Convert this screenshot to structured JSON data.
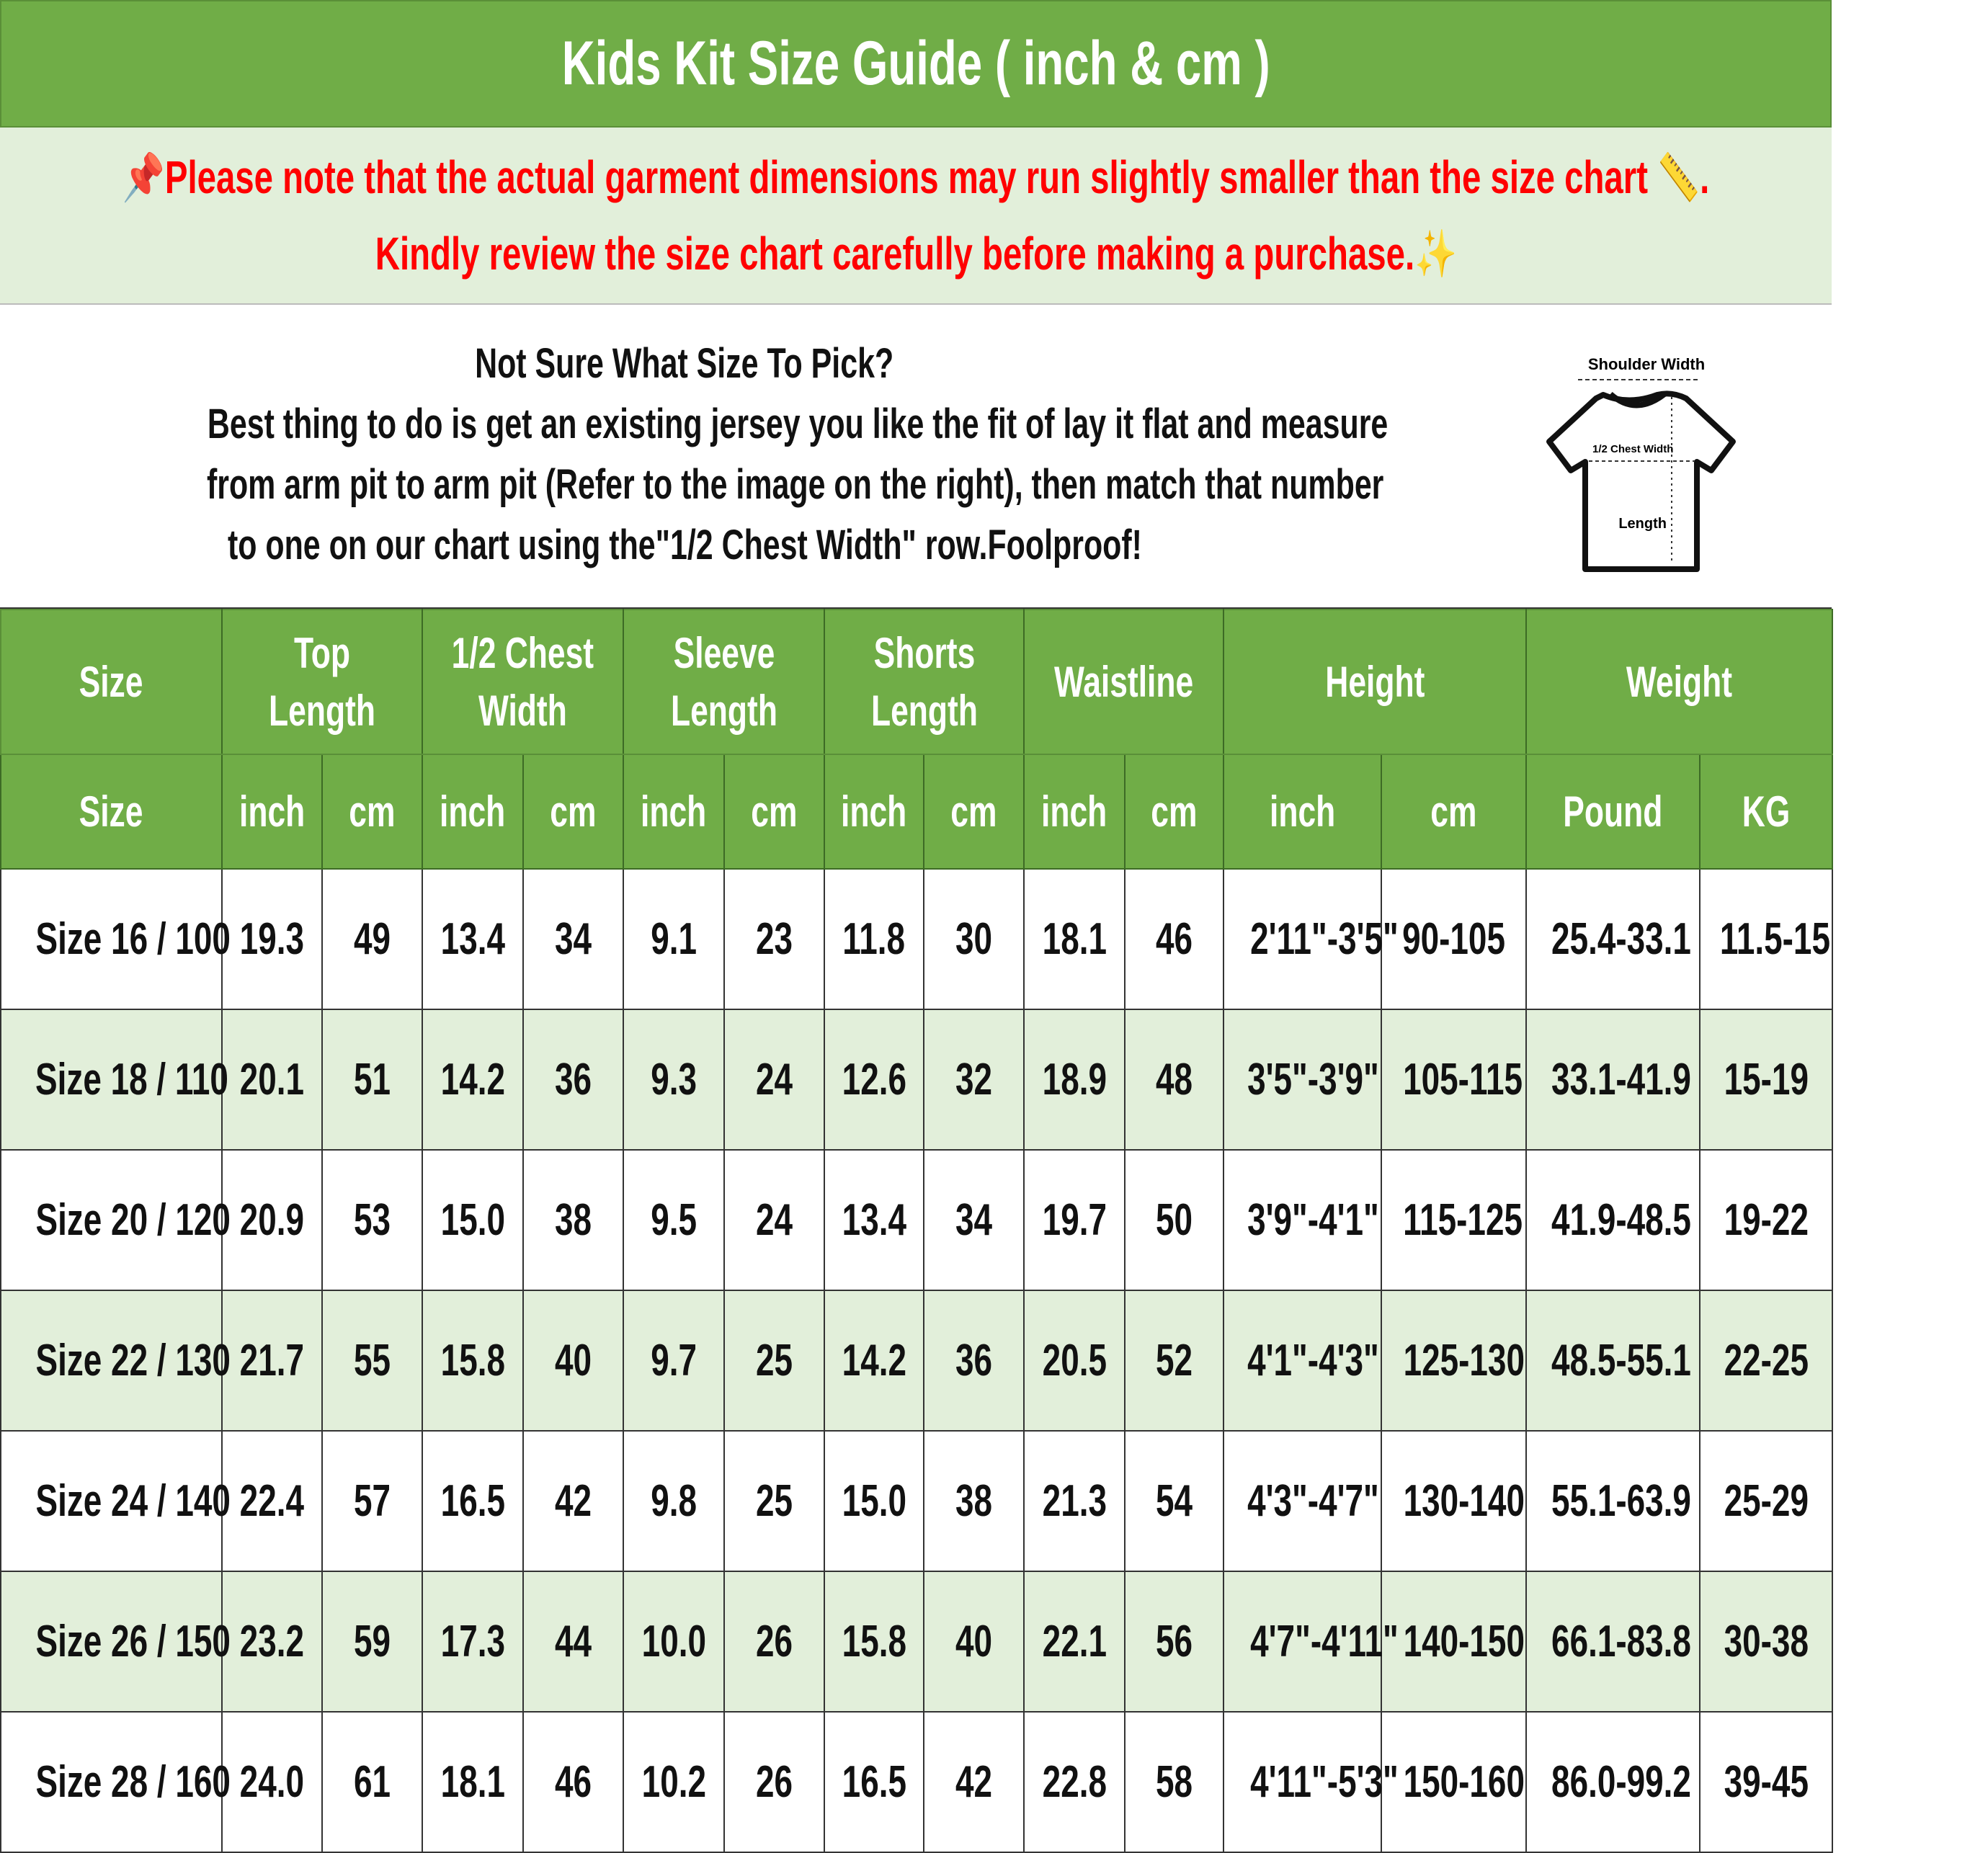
{
  "title": "Kids Kit Size Guide ( inch & cm )",
  "note": {
    "line1": "Please note that the actual garment dimensions may run slightly smaller than the size chart",
    "line1_end": ".",
    "line2": "Kindly review the size chart carefully before making a purchase.",
    "icons": [
      "pushpin-icon",
      "ruler-icon",
      "sparkles-icon"
    ]
  },
  "info": {
    "heading": "Not Sure What Size To Pick?",
    "line1": "Best thing to do is get an existing jersey you like the fit of lay it flat and measure",
    "line2": "from arm pit to arm pit (Refer to the image on the right), then match that number",
    "line3": "to one on our chart using the\"1/2 Chest Width\" row.Foolproof!",
    "diagram": {
      "shoulder": "Shoulder Width",
      "chest": "1/2 Chest Width",
      "length": "Length"
    }
  },
  "colors": {
    "green": "#70ad47",
    "light_green": "#e2efda",
    "red": "#ff0000"
  },
  "table": {
    "groups": [
      "Size",
      "Top Length",
      "1/2 Chest\nWidth",
      "Sleeve\nLength",
      "Shorts\nLength",
      "Waistline",
      "Height",
      "Weight"
    ],
    "units": [
      "Size",
      "inch",
      "cm",
      "inch",
      "cm",
      "inch",
      "cm",
      "inch",
      "cm",
      "inch",
      "cm",
      "inch",
      "cm",
      "Pound",
      "KG"
    ],
    "rows": [
      [
        "Size 16 / 100",
        "19.3",
        "49",
        "13.4",
        "34",
        "9.1",
        "23",
        "11.8",
        "30",
        "18.1",
        "46",
        "2'11\"-3'5\"",
        "90-105",
        "25.4-33.1",
        "11.5-15"
      ],
      [
        "Size 18 / 110",
        "20.1",
        "51",
        "14.2",
        "36",
        "9.3",
        "24",
        "12.6",
        "32",
        "18.9",
        "48",
        "3'5\"-3'9\"",
        "105-115",
        "33.1-41.9",
        "15-19"
      ],
      [
        "Size 20 / 120",
        "20.9",
        "53",
        "15.0",
        "38",
        "9.5",
        "24",
        "13.4",
        "34",
        "19.7",
        "50",
        "3'9\"-4'1\"",
        "115-125",
        "41.9-48.5",
        "19-22"
      ],
      [
        "Size 22 / 130",
        "21.7",
        "55",
        "15.8",
        "40",
        "9.7",
        "25",
        "14.2",
        "36",
        "20.5",
        "52",
        "4'1\"-4'3\"",
        "125-130",
        "48.5-55.1",
        "22-25"
      ],
      [
        "Size 24 / 140",
        "22.4",
        "57",
        "16.5",
        "42",
        "9.8",
        "25",
        "15.0",
        "38",
        "21.3",
        "54",
        "4'3\"-4'7\"",
        "130-140",
        "55.1-63.9",
        "25-29"
      ],
      [
        "Size 26 / 150",
        "23.2",
        "59",
        "17.3",
        "44",
        "10.0",
        "26",
        "15.8",
        "40",
        "22.1",
        "56",
        "4'7\"-4'11\"",
        "140-150",
        "66.1-83.8",
        "30-38"
      ],
      [
        "Size 28 / 160",
        "24.0",
        "61",
        "18.1",
        "46",
        "10.2",
        "26",
        "16.5",
        "42",
        "22.8",
        "58",
        "4'11\"-5'3\"",
        "150-160",
        "86.0-99.2",
        "39-45"
      ]
    ]
  }
}
